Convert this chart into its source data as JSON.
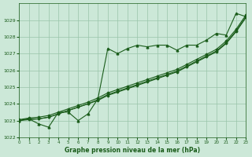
{
  "bg_color": "#cce8d8",
  "grid_color": "#99c4aa",
  "line_color": "#1a5c1a",
  "marker_color": "#1a5c1a",
  "xlabel": "Graphe pression niveau de la mer (hPa)",
  "xlabel_color": "#1a5c1a",
  "ylim": [
    1022,
    1030
  ],
  "xlim": [
    0,
    23
  ],
  "yticks": [
    1022,
    1023,
    1024,
    1025,
    1026,
    1027,
    1028,
    1029
  ],
  "xticks": [
    0,
    1,
    2,
    3,
    4,
    5,
    6,
    7,
    8,
    9,
    10,
    11,
    12,
    13,
    14,
    15,
    16,
    17,
    18,
    19,
    20,
    21,
    22,
    23
  ],
  "series_marked": [
    1023.0,
    1023.1,
    1022.8,
    1022.6,
    1023.5,
    1023.5,
    1023.0,
    1023.4,
    1024.3,
    1027.3,
    1027.0,
    1027.3,
    1027.5,
    1027.4,
    1027.5,
    1027.5,
    1027.2,
    1027.5,
    1027.5,
    1027.8,
    1028.2,
    1028.1,
    1029.4,
    1029.2
  ],
  "series_line1": [
    1023.0,
    1023.1,
    1023.1,
    1023.2,
    1023.4,
    1023.6,
    1023.8,
    1024.0,
    1024.2,
    1024.5,
    1024.7,
    1024.9,
    1025.1,
    1025.3,
    1025.5,
    1025.7,
    1025.9,
    1026.2,
    1026.5,
    1026.8,
    1027.1,
    1027.6,
    1028.3,
    1029.15
  ],
  "series_line2": [
    1023.0,
    1023.05,
    1023.1,
    1023.2,
    1023.4,
    1023.6,
    1023.8,
    1024.0,
    1024.25,
    1024.55,
    1024.75,
    1024.95,
    1025.15,
    1025.35,
    1025.55,
    1025.75,
    1025.95,
    1026.25,
    1026.55,
    1026.85,
    1027.15,
    1027.65,
    1028.35,
    1029.2
  ],
  "series_line3": [
    1023.05,
    1023.15,
    1023.2,
    1023.3,
    1023.5,
    1023.7,
    1023.9,
    1024.1,
    1024.35,
    1024.65,
    1024.85,
    1025.05,
    1025.25,
    1025.45,
    1025.65,
    1025.85,
    1026.05,
    1026.35,
    1026.65,
    1026.95,
    1027.25,
    1027.75,
    1028.45,
    1029.3
  ]
}
